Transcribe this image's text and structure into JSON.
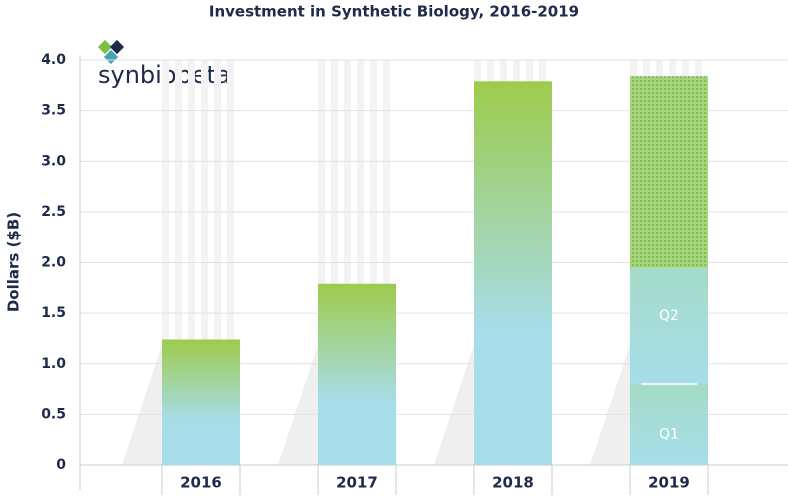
{
  "chart_data": {
    "type": "bar",
    "title": "Investment in Synthetic Biology, 2016-2019",
    "logo": "synbiobeta",
    "y_label": "Dollars ($B)",
    "categories": [
      "2016",
      "2017",
      "2018",
      "2019"
    ],
    "values": [
      1.24,
      1.79,
      3.79,
      3.84
    ],
    "segments": [
      {
        "label": "Q1",
        "value": 0.8
      },
      {
        "label": "Q2",
        "value": 1.15
      }
    ],
    "ylim": [
      0,
      4
    ],
    "yticks": [
      0,
      0.5,
      {
        "value": 1,
        "label": "1.0"
      },
      1.5,
      {
        "value": 2,
        "label": "2.0"
      },
      2.5,
      {
        "value": 3,
        "label": "3.0"
      },
      3.5,
      {
        "value": 4,
        "label": "4.0"
      }
    ],
    "grid": true,
    "color_top": "#9dcb4b",
    "color_bottom": "#a7dde9"
  }
}
